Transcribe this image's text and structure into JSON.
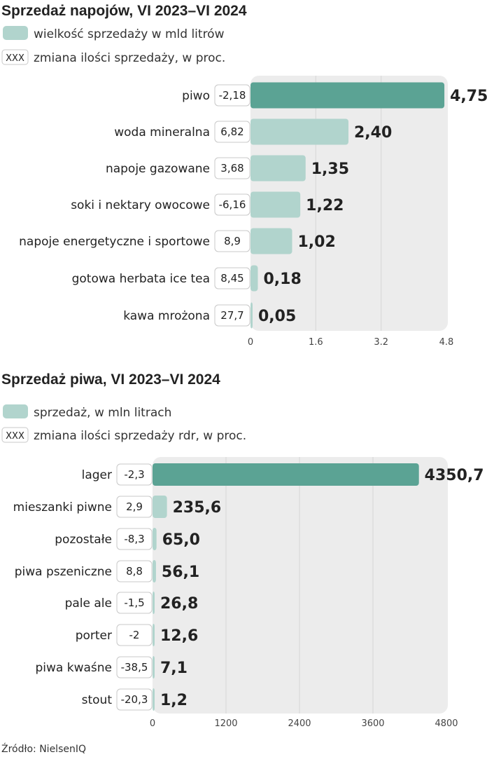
{
  "colors": {
    "highlight": "#5ba394",
    "bar": "#b1d4cd",
    "plot_bg": "#ececec",
    "grid": "#d6d6d6",
    "box_border": "#c8c8c8"
  },
  "source": "Źródło: NielsenIQ",
  "chart_data": [
    {
      "type": "bar",
      "orientation": "horizontal",
      "title": "Sprzedaż napojów, VI 2023–VI 2024",
      "legend": {
        "bar_label": "wielkość sprzedaży w mld litrów",
        "box_symbol": "XXX",
        "box_label": "zmiana ilości sprzedaży, w proc."
      },
      "categories": [
        "piwo",
        "woda mineralna",
        "napoje gazowane",
        "soki i nektary owocowe",
        "napoje energetyczne i sportowe",
        "gotowa herbata ice tea",
        "kawa mrożona"
      ],
      "values": [
        4.75,
        2.4,
        1.35,
        1.22,
        1.02,
        0.18,
        0.05
      ],
      "value_labels": [
        "4,75",
        "2,40",
        "1,35",
        "1,22",
        "1,02",
        "0,18",
        "0,05"
      ],
      "change_labels": [
        "-2,18",
        "6,82",
        "3,68",
        "-6,16",
        "8,9",
        "8,45",
        "27,7"
      ],
      "highlight_index": 0,
      "xlim": [
        0,
        4.8
      ],
      "ticks": [
        "0",
        "1.6",
        "3.2",
        "4.8"
      ],
      "tick_values": [
        0,
        1.6,
        3.2,
        4.8
      ],
      "grid": true
    },
    {
      "type": "bar",
      "orientation": "horizontal",
      "title": "Sprzedaż piwa, VI 2023–VI 2024",
      "legend": {
        "bar_label": "sprzedaż, w mln litrach",
        "box_symbol": "XXX",
        "box_label": "zmiana ilości sprzedaży rdr, w proc."
      },
      "categories": [
        "lager",
        "mieszanki piwne",
        "pozostałe",
        "piwa pszeniczne",
        "pale ale",
        "porter",
        "piwa kwaśne",
        "stout"
      ],
      "values": [
        4350.7,
        235.6,
        65.0,
        56.1,
        26.8,
        12.6,
        7.1,
        1.2
      ],
      "value_labels": [
        "4350,7",
        "235,6",
        "65,0",
        "56,1",
        "26,8",
        "12,6",
        "7,1",
        "1,2"
      ],
      "change_labels": [
        "-2,3",
        "2,9",
        "-8,3",
        "8,8",
        "-1,5",
        "-2",
        "-38,5",
        "-20,3"
      ],
      "highlight_index": 0,
      "xlim": [
        0,
        4800
      ],
      "ticks": [
        "0",
        "1200",
        "2400",
        "3600",
        "4800"
      ],
      "tick_values": [
        0,
        1200,
        2400,
        3600,
        4800
      ],
      "grid": true
    }
  ]
}
